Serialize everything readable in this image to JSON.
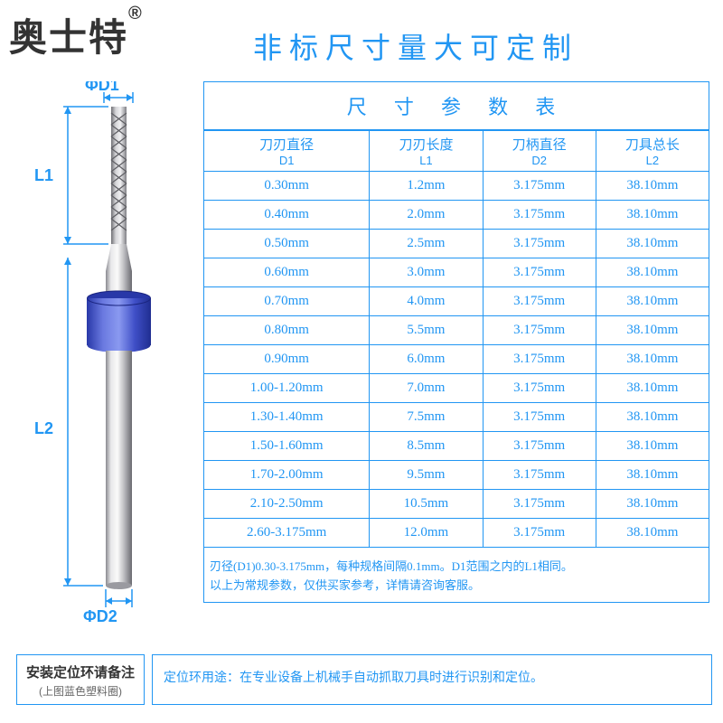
{
  "brand_text": "奥士特",
  "brand_reg": "®",
  "headline": "非标尺寸量大可定制",
  "table_title": "尺 寸 参 数 表",
  "columns": [
    {
      "label": "刀刃直径",
      "sub": "D1"
    },
    {
      "label": "刀刃长度",
      "sub": "L1"
    },
    {
      "label": "刀柄直径",
      "sub": "D2"
    },
    {
      "label": "刀具总长",
      "sub": "L2"
    }
  ],
  "rows": [
    [
      "0.30mm",
      "1.2mm",
      "3.175mm",
      "38.10mm"
    ],
    [
      "0.40mm",
      "2.0mm",
      "3.175mm",
      "38.10mm"
    ],
    [
      "0.50mm",
      "2.5mm",
      "3.175mm",
      "38.10mm"
    ],
    [
      "0.60mm",
      "3.0mm",
      "3.175mm",
      "38.10mm"
    ],
    [
      "0.70mm",
      "4.0mm",
      "3.175mm",
      "38.10mm"
    ],
    [
      "0.80mm",
      "5.5mm",
      "3.175mm",
      "38.10mm"
    ],
    [
      "0.90mm",
      "6.0mm",
      "3.175mm",
      "38.10mm"
    ],
    [
      "1.00-1.20mm",
      "7.0mm",
      "3.175mm",
      "38.10mm"
    ],
    [
      "1.30-1.40mm",
      "7.5mm",
      "3.175mm",
      "38.10mm"
    ],
    [
      "1.50-1.60mm",
      "8.5mm",
      "3.175mm",
      "38.10mm"
    ],
    [
      "1.70-2.00mm",
      "9.5mm",
      "3.175mm",
      "38.10mm"
    ],
    [
      "2.10-2.50mm",
      "10.5mm",
      "3.175mm",
      "38.10mm"
    ],
    [
      "2.60-3.175mm",
      "12.0mm",
      "3.175mm",
      "38.10mm"
    ]
  ],
  "footnotes": [
    "刃径(D1)0.30-3.175mm，每种规格间隔0.1mm。D1范围之内的L1相同。",
    "以上为常规参数，仅供买家参考，详情请咨询客服。"
  ],
  "bottom_left_main": "安装定位环请备注",
  "bottom_left_sub": "(上图蓝色塑料圈)",
  "bottom_right": "定位环用途：在专业设备上机械手自动抓取刀具时进行识别和定位。",
  "labels": {
    "d1": "ΦD1",
    "d2": "ΦD2",
    "l1": "L1",
    "l2": "L2"
  },
  "colors": {
    "brand_blue": "#2196f3",
    "ring_blue": "#3f4fc7",
    "ring_light": "#6a79e0",
    "steel_light": "#e8e8ea",
    "steel_mid": "#bcbcc0",
    "steel_dark": "#8a8a90",
    "flute_light": "#d5d5d8",
    "flute_dark": "#909095"
  }
}
